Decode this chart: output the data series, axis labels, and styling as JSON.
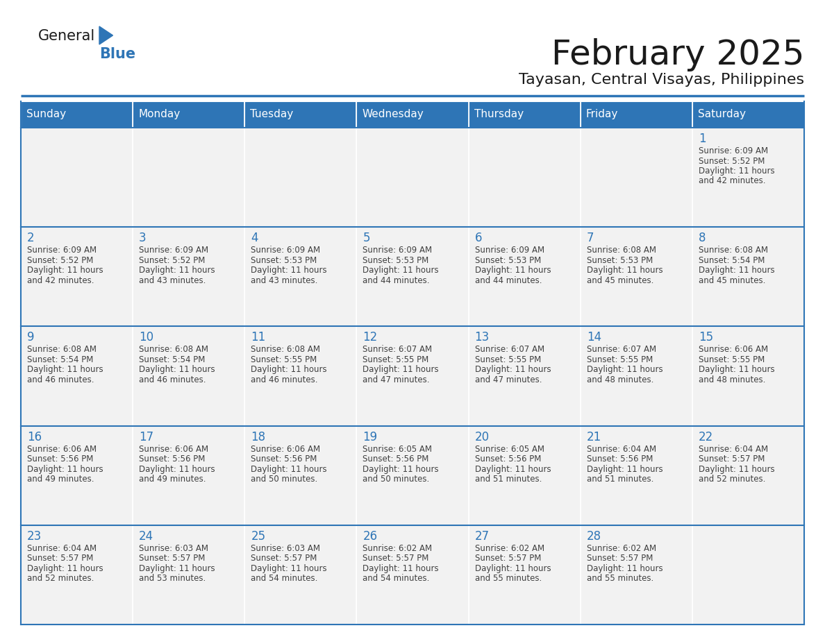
{
  "title": "February 2025",
  "subtitle": "Tayasan, Central Visayas, Philippines",
  "days_of_week": [
    "Sunday",
    "Monday",
    "Tuesday",
    "Wednesday",
    "Thursday",
    "Friday",
    "Saturday"
  ],
  "header_bg": "#2E75B6",
  "header_text": "#FFFFFF",
  "cell_bg_light": "#F2F2F2",
  "day_num_color": "#2E75B6",
  "info_text_color": "#404040",
  "title_color": "#1a1a1a",
  "subtitle_color": "#1a1a1a",
  "border_color": "#2E75B6",
  "calendar_data": [
    [
      null,
      null,
      null,
      null,
      null,
      null,
      {
        "day": 1,
        "sunrise": "6:09 AM",
        "sunset": "5:52 PM",
        "daylight_line1": "11 hours",
        "daylight_line2": "and 42 minutes."
      }
    ],
    [
      {
        "day": 2,
        "sunrise": "6:09 AM",
        "sunset": "5:52 PM",
        "daylight_line1": "11 hours",
        "daylight_line2": "and 42 minutes."
      },
      {
        "day": 3,
        "sunrise": "6:09 AM",
        "sunset": "5:52 PM",
        "daylight_line1": "11 hours",
        "daylight_line2": "and 43 minutes."
      },
      {
        "day": 4,
        "sunrise": "6:09 AM",
        "sunset": "5:53 PM",
        "daylight_line1": "11 hours",
        "daylight_line2": "and 43 minutes."
      },
      {
        "day": 5,
        "sunrise": "6:09 AM",
        "sunset": "5:53 PM",
        "daylight_line1": "11 hours",
        "daylight_line2": "and 44 minutes."
      },
      {
        "day": 6,
        "sunrise": "6:09 AM",
        "sunset": "5:53 PM",
        "daylight_line1": "11 hours",
        "daylight_line2": "and 44 minutes."
      },
      {
        "day": 7,
        "sunrise": "6:08 AM",
        "sunset": "5:53 PM",
        "daylight_line1": "11 hours",
        "daylight_line2": "and 45 minutes."
      },
      {
        "day": 8,
        "sunrise": "6:08 AM",
        "sunset": "5:54 PM",
        "daylight_line1": "11 hours",
        "daylight_line2": "and 45 minutes."
      }
    ],
    [
      {
        "day": 9,
        "sunrise": "6:08 AM",
        "sunset": "5:54 PM",
        "daylight_line1": "11 hours",
        "daylight_line2": "and 46 minutes."
      },
      {
        "day": 10,
        "sunrise": "6:08 AM",
        "sunset": "5:54 PM",
        "daylight_line1": "11 hours",
        "daylight_line2": "and 46 minutes."
      },
      {
        "day": 11,
        "sunrise": "6:08 AM",
        "sunset": "5:55 PM",
        "daylight_line1": "11 hours",
        "daylight_line2": "and 46 minutes."
      },
      {
        "day": 12,
        "sunrise": "6:07 AM",
        "sunset": "5:55 PM",
        "daylight_line1": "11 hours",
        "daylight_line2": "and 47 minutes."
      },
      {
        "day": 13,
        "sunrise": "6:07 AM",
        "sunset": "5:55 PM",
        "daylight_line1": "11 hours",
        "daylight_line2": "and 47 minutes."
      },
      {
        "day": 14,
        "sunrise": "6:07 AM",
        "sunset": "5:55 PM",
        "daylight_line1": "11 hours",
        "daylight_line2": "and 48 minutes."
      },
      {
        "day": 15,
        "sunrise": "6:06 AM",
        "sunset": "5:55 PM",
        "daylight_line1": "11 hours",
        "daylight_line2": "and 48 minutes."
      }
    ],
    [
      {
        "day": 16,
        "sunrise": "6:06 AM",
        "sunset": "5:56 PM",
        "daylight_line1": "11 hours",
        "daylight_line2": "and 49 minutes."
      },
      {
        "day": 17,
        "sunrise": "6:06 AM",
        "sunset": "5:56 PM",
        "daylight_line1": "11 hours",
        "daylight_line2": "and 49 minutes."
      },
      {
        "day": 18,
        "sunrise": "6:06 AM",
        "sunset": "5:56 PM",
        "daylight_line1": "11 hours",
        "daylight_line2": "and 50 minutes."
      },
      {
        "day": 19,
        "sunrise": "6:05 AM",
        "sunset": "5:56 PM",
        "daylight_line1": "11 hours",
        "daylight_line2": "and 50 minutes."
      },
      {
        "day": 20,
        "sunrise": "6:05 AM",
        "sunset": "5:56 PM",
        "daylight_line1": "11 hours",
        "daylight_line2": "and 51 minutes."
      },
      {
        "day": 21,
        "sunrise": "6:04 AM",
        "sunset": "5:56 PM",
        "daylight_line1": "11 hours",
        "daylight_line2": "and 51 minutes."
      },
      {
        "day": 22,
        "sunrise": "6:04 AM",
        "sunset": "5:57 PM",
        "daylight_line1": "11 hours",
        "daylight_line2": "and 52 minutes."
      }
    ],
    [
      {
        "day": 23,
        "sunrise": "6:04 AM",
        "sunset": "5:57 PM",
        "daylight_line1": "11 hours",
        "daylight_line2": "and 52 minutes."
      },
      {
        "day": 24,
        "sunrise": "6:03 AM",
        "sunset": "5:57 PM",
        "daylight_line1": "11 hours",
        "daylight_line2": "and 53 minutes."
      },
      {
        "day": 25,
        "sunrise": "6:03 AM",
        "sunset": "5:57 PM",
        "daylight_line1": "11 hours",
        "daylight_line2": "and 54 minutes."
      },
      {
        "day": 26,
        "sunrise": "6:02 AM",
        "sunset": "5:57 PM",
        "daylight_line1": "11 hours",
        "daylight_line2": "and 54 minutes."
      },
      {
        "day": 27,
        "sunrise": "6:02 AM",
        "sunset": "5:57 PM",
        "daylight_line1": "11 hours",
        "daylight_line2": "and 55 minutes."
      },
      {
        "day": 28,
        "sunrise": "6:02 AM",
        "sunset": "5:57 PM",
        "daylight_line1": "11 hours",
        "daylight_line2": "and 55 minutes."
      },
      null
    ]
  ]
}
